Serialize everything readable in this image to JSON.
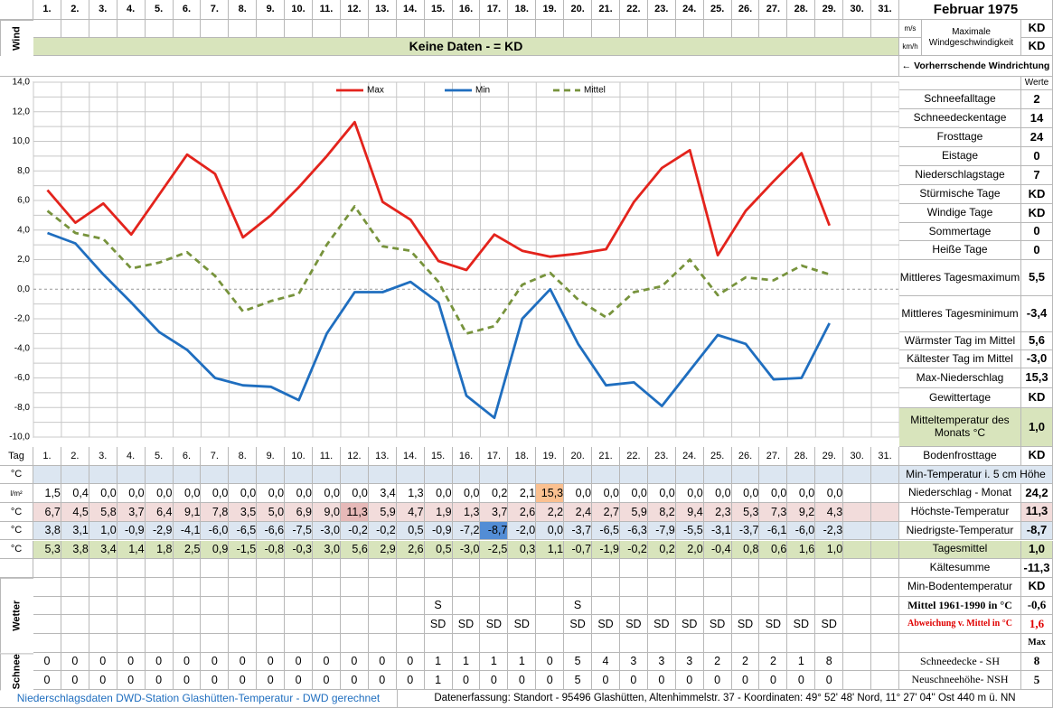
{
  "header": {
    "month": "Februar 1975",
    "wind_label": "Wind",
    "wind_units": [
      "m/s",
      "km/h"
    ],
    "wind_title": "Maximale Windgeschwindigkeit",
    "wind_values": [
      "KD",
      "KD"
    ],
    "no_data": "Keine Daten -  = KD",
    "wind_direction": "← Vorherrschende Windrichtung"
  },
  "chart_data": {
    "type": "line",
    "categories": [
      "1.",
      "2.",
      "3.",
      "4.",
      "5.",
      "6.",
      "7.",
      "8.",
      "9.",
      "10.",
      "11.",
      "12.",
      "13.",
      "14.",
      "15.",
      "16.",
      "17.",
      "18.",
      "19.",
      "20.",
      "21.",
      "22.",
      "23.",
      "24.",
      "25.",
      "26.",
      "27.",
      "28.",
      "29.",
      "30.",
      "31."
    ],
    "series": [
      {
        "name": "Max",
        "color": "#e3231c",
        "line_style": "solid",
        "values": [
          6.7,
          4.5,
          5.8,
          3.7,
          6.4,
          9.1,
          7.8,
          3.5,
          5.0,
          6.9,
          9.0,
          11.3,
          5.9,
          4.7,
          1.9,
          1.3,
          3.7,
          2.6,
          2.2,
          2.4,
          2.7,
          5.9,
          8.2,
          9.4,
          2.3,
          5.3,
          7.3,
          9.2,
          4.3,
          null,
          null
        ],
        "value_labels": [
          "6,7",
          "4,5",
          "5,8",
          "3,7",
          "6,4",
          "9,1",
          "7,8",
          "3,5",
          "5,0",
          "6,9",
          "9,0",
          "11,3",
          "5,9",
          "4,7",
          "1,9",
          "1,3",
          "3,7",
          "2,6",
          "2,2",
          "2,4",
          "2,7",
          "5,9",
          "8,2",
          "9,4",
          "2,3",
          "5,3",
          "7,3",
          "9,2",
          "4,3",
          null,
          null
        ]
      },
      {
        "name": "Min",
        "color": "#1f6ebf",
        "line_style": "solid",
        "values": [
          3.8,
          3.1,
          1.0,
          -0.9,
          -2.9,
          -4.1,
          -6.0,
          -6.5,
          -6.6,
          -7.5,
          -3.0,
          -0.2,
          -0.2,
          0.5,
          -0.9,
          -7.2,
          -8.7,
          -2.0,
          0.0,
          -3.7,
          -6.5,
          -6.3,
          -7.9,
          -5.5,
          -3.1,
          -3.7,
          -6.1,
          -6.0,
          -2.3,
          null,
          null
        ],
        "value_labels": [
          "3,8",
          "3,1",
          "1,0",
          "-0,9",
          "-2,9",
          "-4,1",
          "-6,0",
          "-6,5",
          "-6,6",
          "-7,5",
          "-3,0",
          "-0,2",
          "-0,2",
          "0,5",
          "-0,9",
          "-7,2",
          "-8,7",
          "-2,0",
          "0,0",
          "-3,7",
          "-6,5",
          "-6,3",
          "-7,9",
          "-5,5",
          "-3,1",
          "-3,7",
          "-6,1",
          "-6,0",
          "-2,3",
          null,
          null
        ]
      },
      {
        "name": "Mittel",
        "color": "#77933c",
        "line_style": "dashed",
        "values": [
          5.3,
          3.8,
          3.4,
          1.4,
          1.8,
          2.5,
          0.9,
          -1.5,
          -0.8,
          -0.3,
          3.0,
          5.6,
          2.9,
          2.6,
          0.5,
          -3.0,
          -2.5,
          0.3,
          1.1,
          -0.7,
          -1.9,
          -0.2,
          0.2,
          2.0,
          -0.4,
          0.8,
          0.6,
          1.6,
          1.0,
          null,
          null
        ],
        "value_labels": [
          "5,3",
          "3,8",
          "3,4",
          "1,4",
          "1,8",
          "2,5",
          "0,9",
          "-1,5",
          "-0,8",
          "-0,3",
          "3,0",
          "5,6",
          "2,9",
          "2,6",
          "0,5",
          "-3,0",
          "-2,5",
          "0,3",
          "1,1",
          "-0,7",
          "-1,9",
          "-0,2",
          "0,2",
          "2,0",
          "-0,4",
          "0,8",
          "0,6",
          "1,6",
          "1,0",
          null,
          null
        ]
      }
    ],
    "ylim": [
      -10,
      14
    ],
    "yticks": [
      {
        "value": -10,
        "label": "-10,0"
      },
      {
        "value": -8,
        "label": "-8,0"
      },
      {
        "value": -6,
        "label": "-6,0"
      },
      {
        "value": -4,
        "label": "-4,0"
      },
      {
        "value": -2,
        "label": "-2,0"
      },
      {
        "value": 0,
        "label": "0,0"
      },
      {
        "value": 2,
        "label": "2,0"
      },
      {
        "value": 4,
        "label": "4,0"
      },
      {
        "value": 6,
        "label": "6,0"
      },
      {
        "value": 8,
        "label": "8,0"
      },
      {
        "value": 10,
        "label": "10,0"
      },
      {
        "value": 12,
        "label": "12,0"
      },
      {
        "value": 14,
        "label": "14,0"
      }
    ],
    "grid": true,
    "legend": "top"
  },
  "stats": {
    "header": "Werte",
    "rows": [
      {
        "label": "Schneefalltage",
        "value": "2"
      },
      {
        "label": "Schneedeckentage",
        "value": "14"
      },
      {
        "label": "Frosttage",
        "value": "24"
      },
      {
        "label": "Eistage",
        "value": "0"
      },
      {
        "label": "Niederschlagstage",
        "value": "7"
      },
      {
        "label": "Stürmische Tage",
        "value": "KD"
      },
      {
        "label": "Windige Tage",
        "value": "KD"
      },
      {
        "label": "Sommertage",
        "value": "0"
      },
      {
        "label": "Heiße Tage",
        "value": "0"
      },
      {
        "label": "Mittleres Tagesmaximum",
        "value": "5,5"
      },
      {
        "label": "Mittleres Tagesminimum",
        "value": "-3,4"
      },
      {
        "label": "Wärmster Tag im Mittel",
        "value": "5,6"
      },
      {
        "label": "Kältester Tag im Mittel",
        "value": "-3,0"
      },
      {
        "label": "Max-Niederschlag",
        "value": "15,3"
      },
      {
        "label": "Gewittertage",
        "value": "KD"
      },
      {
        "label": "Mitteltemperatur des Monats °C",
        "value": "1,0"
      }
    ]
  },
  "table": {
    "day_label": "Tag",
    "rows": [
      {
        "label": "Bodenfrosttage",
        "value": "KD"
      },
      {
        "unit": "°C",
        "label": "Min-Temperatur i. 5 cm Höhe"
      },
      {
        "unit": "l/m²",
        "label": "Niederschlag - Monat",
        "value": "24,2",
        "cells": [
          "1,5",
          "0,4",
          "0,0",
          "0,0",
          "0,0",
          "0,0",
          "0,0",
          "0,0",
          "0,0",
          "0,0",
          "0,0",
          "0,0",
          "3,4",
          "1,3",
          "0,0",
          "0,0",
          "0,2",
          "2,1",
          "15,3",
          "0,0",
          "0,0",
          "0,0",
          "0,0",
          "0,0",
          "0,0",
          "0,0",
          "0,0",
          "0,0",
          "0,0",
          null,
          null
        ]
      },
      {
        "unit": "°C",
        "label": "Höchste-Temperatur",
        "value": "11,3"
      },
      {
        "unit": "°C",
        "label": "Niedrigste-Temperatur",
        "value": "-8,7"
      },
      {
        "unit": "°C",
        "label": "Tagesmittel",
        "value": "1,0"
      },
      {
        "label": "Kältesumme",
        "value": "-11,3"
      },
      {
        "label": "Min-Bodentemperatur",
        "value": "KD"
      },
      {
        "label": "Mittel 1961-1990 in °C",
        "value": "-0,6",
        "cells": [
          null,
          null,
          null,
          null,
          null,
          null,
          null,
          null,
          null,
          null,
          null,
          null,
          null,
          null,
          "S",
          null,
          null,
          null,
          null,
          "S",
          null,
          null,
          null,
          null,
          null,
          null,
          null,
          null,
          null,
          null,
          null
        ]
      },
      {
        "label": "Abweichung v. Mittel in °C",
        "value": "1,6",
        "cells": [
          null,
          null,
          null,
          null,
          null,
          null,
          null,
          null,
          null,
          null,
          null,
          null,
          null,
          null,
          "SD",
          "SD",
          "SD",
          "SD",
          null,
          "SD",
          "SD",
          "SD",
          "SD",
          "SD",
          "SD",
          "SD",
          "SD",
          "SD",
          "SD",
          null,
          null
        ]
      },
      {
        "value": "Max"
      },
      {
        "label": "Schneedecke - SH",
        "value": 8,
        "cells": [
          0,
          0,
          0,
          0,
          0,
          0,
          0,
          0,
          0,
          0,
          0,
          0,
          0,
          0,
          1,
          1,
          1,
          1,
          0,
          5,
          4,
          3,
          3,
          3,
          2,
          2,
          2,
          1,
          8,
          null,
          null
        ]
      },
      {
        "label": "Neuschneehöhe- NSH",
        "value": 5,
        "cells": [
          0,
          0,
          0,
          0,
          0,
          0,
          0,
          0,
          0,
          0,
          0,
          0,
          0,
          0,
          1,
          0,
          0,
          0,
          0,
          5,
          0,
          0,
          0,
          0,
          0,
          0,
          0,
          0,
          0,
          null,
          null
        ]
      }
    ],
    "weather_label": "Wetter",
    "snow_label": "Schnee"
  },
  "footer": {
    "source": "Niederschlagsdaten DWD-Station Glashütten-Temperatur -  DWD gerechnet",
    "location": "Datenerfassung: Standort -  95496 Glashütten, Altenhimmelstr. 37 - Koordinaten: 49° 52' 48' Nord,  11° 27' 04'' Ost  440 m ü. NN"
  }
}
